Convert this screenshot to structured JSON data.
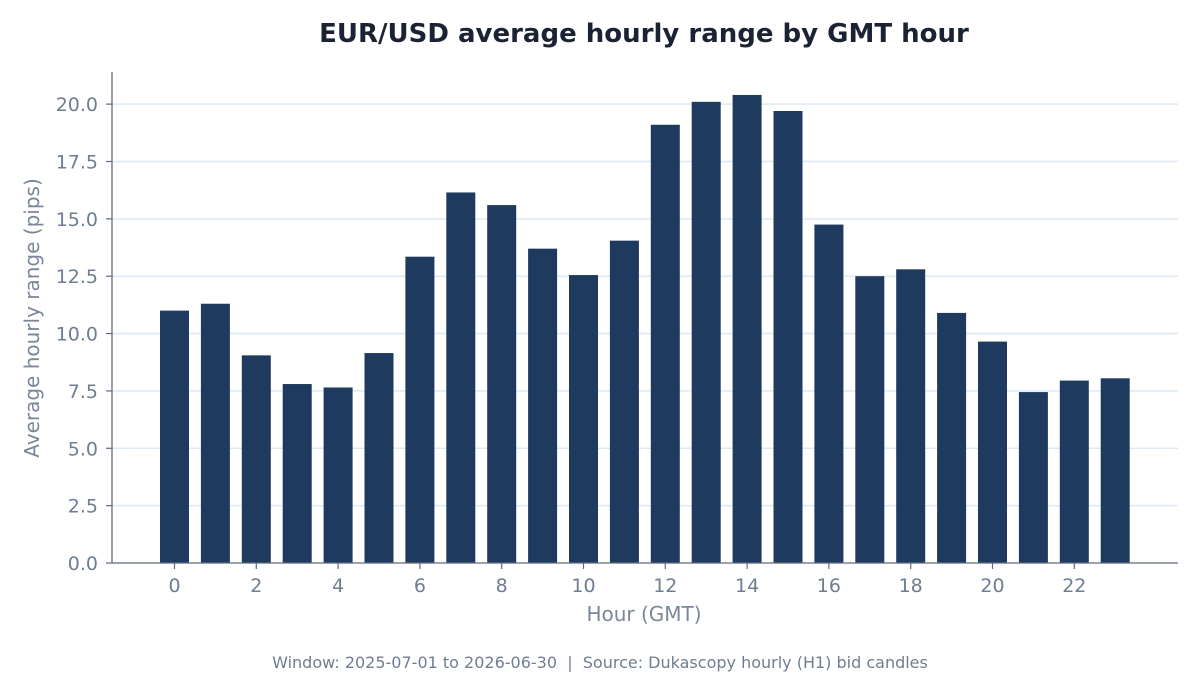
{
  "chart_data": {
    "type": "bar",
    "title": "EUR/USD average hourly range by GMT hour",
    "xlabel": "Hour (GMT)",
    "ylabel": "Average hourly range (pips)",
    "categories": [
      0,
      1,
      2,
      3,
      4,
      5,
      6,
      7,
      8,
      9,
      10,
      11,
      12,
      13,
      14,
      15,
      16,
      17,
      18,
      19,
      20,
      21,
      22,
      23
    ],
    "values": [
      11.0,
      11.3,
      9.05,
      7.8,
      7.65,
      9.15,
      13.35,
      16.15,
      15.6,
      13.7,
      12.55,
      14.05,
      19.1,
      20.1,
      20.4,
      19.7,
      14.75,
      12.5,
      12.8,
      10.9,
      9.65,
      7.45,
      7.95,
      8.05
    ],
    "x_tick_labels": [
      "0",
      "2",
      "4",
      "6",
      "8",
      "10",
      "12",
      "14",
      "16",
      "18",
      "20",
      "22"
    ],
    "y_tick_labels": [
      "0.0",
      "2.5",
      "5.0",
      "7.5",
      "10.0",
      "12.5",
      "15.0",
      "17.5",
      "20.0"
    ],
    "ylim": [
      0,
      21.4
    ],
    "grid": "horizontal",
    "bar_color": "#1f3a5f",
    "grid_color": "#dde8f2",
    "axis_color": "#5f6b7c",
    "footnote": "Window: 2025-07-01 to 2026-06-30  |  Source: Dukascopy hourly (H1) bid candles"
  }
}
